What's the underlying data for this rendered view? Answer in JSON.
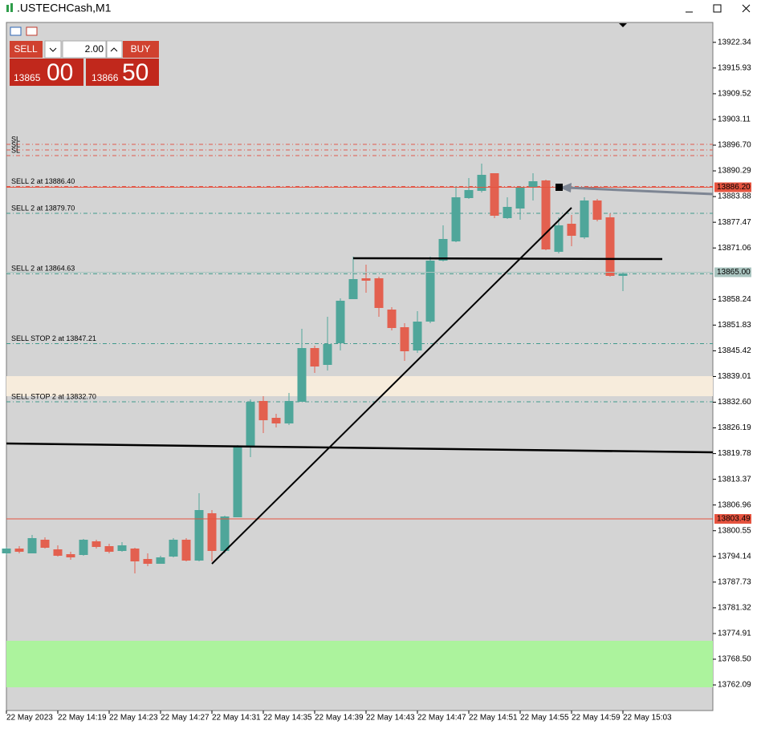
{
  "window": {
    "title": ".USTECHCash,M1"
  },
  "trade_panel": {
    "sell": "SELL",
    "buy": "BUY",
    "volume": "2.00",
    "bid_big": "13865",
    "bid_small": "00",
    "ask_big": "13866",
    "ask_small": "50"
  },
  "chart_data": {
    "type": "candlestick",
    "categories": [
      "22 May 2023",
      null,
      null,
      null,
      "22 May 14:19",
      null,
      null,
      null,
      "22 May 14:23",
      null,
      null,
      null,
      "22 May 14:27",
      null,
      null,
      null,
      "22 May 14:31",
      null,
      null,
      null,
      "22 May 14:35",
      null,
      null,
      null,
      "22 May 14:39",
      null,
      null,
      null,
      "22 May 14:43",
      null,
      null,
      null,
      "22 May 14:47",
      null,
      null,
      null,
      "22 May 14:51",
      null,
      null,
      null,
      "22 May 14:55",
      null,
      null,
      null,
      "22 May 14:59",
      null,
      null,
      null,
      "22 May 15:03"
    ],
    "open": [
      13794.9,
      13796.1,
      13794.9,
      13798.3,
      13795.9,
      13794.7,
      13794.5,
      13797.9,
      13796.7,
      13795.5,
      13796.1,
      13793.5,
      13792.3,
      13794.1,
      13798.3,
      13793.1,
      13804.9,
      13795.5,
      13803.9,
      13821.3,
      13832.9,
      13828.7,
      13827.3,
      13832.7,
      13846.1,
      13841.9,
      13847.3,
      13858.3,
      13863.5,
      13863.5,
      13855.7,
      13851.3,
      13845.5,
      13852.7,
      13867.9,
      13872.7,
      13883.5,
      13885.3,
      13889.7,
      13878.5,
      13880.9,
      13886.1,
      13887.9,
      13870.1,
      13877.1,
      13873.7,
      13882.9,
      13878.7,
      13864.1
    ],
    "high": [
      13796.5,
      13796.7,
      13799.5,
      13798.9,
      13796.9,
      13795.3,
      13798.5,
      13798.3,
      13797.3,
      13797.7,
      13796.3,
      13794.9,
      13794.3,
      13798.7,
      13798.7,
      13809.9,
      13805.7,
      13804.3,
      13821.9,
      13833.3,
      13834.1,
      13829.7,
      13834.9,
      13850.9,
      13846.7,
      13853.9,
      13858.5,
      13868.9,
      13866.9,
      13863.9,
      13856.3,
      13852.3,
      13855.3,
      13868.9,
      13876.7,
      13886.5,
      13888.5,
      13892.1,
      13889.7,
      13883.7,
      13886.5,
      13889.7,
      13888.1,
      13878.7,
      13879.3,
      13883.7,
      13883.3,
      13879.7,
      13865.1
    ],
    "low": [
      13794.5,
      13794.9,
      13794.9,
      13796.1,
      13794.1,
      13793.3,
      13794.3,
      13796.1,
      13794.9,
      13795.3,
      13789.9,
      13791.7,
      13792.3,
      13793.9,
      13792.9,
      13792.9,
      13792.9,
      13794.9,
      13803.9,
      13818.9,
      13824.9,
      13826.3,
      13826.9,
      13832.7,
      13839.9,
      13840.5,
      13845.5,
      13858.3,
      13859.9,
      13853.9,
      13850.5,
      13842.9,
      13844.9,
      13852.3,
      13867.7,
      13872.5,
      13883.3,
      13884.9,
      13878.5,
      13878.3,
      13878.1,
      13882.9,
      13870.5,
      13869.7,
      13871.5,
      13873.3,
      13877.7,
      13863.9,
      13860.3
    ],
    "close": [
      13796.1,
      13795.3,
      13798.7,
      13796.3,
      13794.3,
      13793.9,
      13798.3,
      13796.5,
      13795.3,
      13796.9,
      13792.9,
      13792.3,
      13793.9,
      13798.3,
      13793.1,
      13805.7,
      13795.5,
      13804.1,
      13821.5,
      13832.7,
      13828.1,
      13827.3,
      13832.9,
      13846.1,
      13841.5,
      13847.1,
      13857.9,
      13863.3,
      13862.9,
      13856.1,
      13851.1,
      13845.3,
      13852.7,
      13867.9,
      13873.3,
      13883.7,
      13885.5,
      13889.3,
      13879.1,
      13881.3,
      13886.1,
      13887.7,
      13870.7,
      13876.7,
      13874.1,
      13882.9,
      13878.1,
      13864.1,
      13864.7
    ],
    "up_color": "#4fa69a",
    "down_color": "#e3604f",
    "ylim": [
      13755.7,
      13927.3
    ],
    "yticks": [
      13922.34,
      13915.93,
      13909.52,
      13903.11,
      {
        "value": 13896.7,
        "label": "13896.70"
      },
      13890.29,
      13883.88,
      13877.47,
      13871.06,
      13858.24,
      13851.83,
      13845.42,
      13839.01,
      {
        "value": 13832.6,
        "label": "13832.60"
      },
      13826.19,
      13819.78,
      13813.37,
      13806.96,
      13800.55,
      13794.14,
      13787.73,
      13781.32,
      13774.91,
      {
        "value": 13768.5,
        "label": "13768.50"
      },
      13762.09
    ],
    "grid": false,
    "levels": [
      {
        "label": "SL",
        "value": 13896.9,
        "color": "#e05a4e"
      },
      {
        "label": "SL",
        "value": 13895.5,
        "color": "#e05a4e"
      },
      {
        "label": "SL",
        "value": 13894.1,
        "color": "#e05a4e"
      },
      {
        "label": "SELL 2 at 13886.40",
        "value": 13886.4,
        "color": "#e05a4e"
      },
      {
        "label": "SELL 2 at 13879.70",
        "value": 13879.7,
        "color": "#3f9a8b"
      },
      {
        "label": "SELL 2 at 13864.63",
        "value": 13864.63,
        "color": "#3f9a8b"
      },
      {
        "label": "SELL STOP 2 at 13847.21",
        "value": 13847.21,
        "color": "#3f9a8b"
      },
      {
        "label": "SELL STOP 2 at 13832.70",
        "value": 13832.7,
        "color": "#3f9a8b"
      }
    ],
    "price_labels": [
      {
        "value": 13886.2,
        "label": "13886.20",
        "color": "#e5533f"
      },
      {
        "value": 13865.0,
        "label": "13865.00",
        "color": "#a9c4bf"
      },
      {
        "value": 13803.49,
        "label": "13803.49",
        "color": "#e5533f"
      }
    ]
  }
}
